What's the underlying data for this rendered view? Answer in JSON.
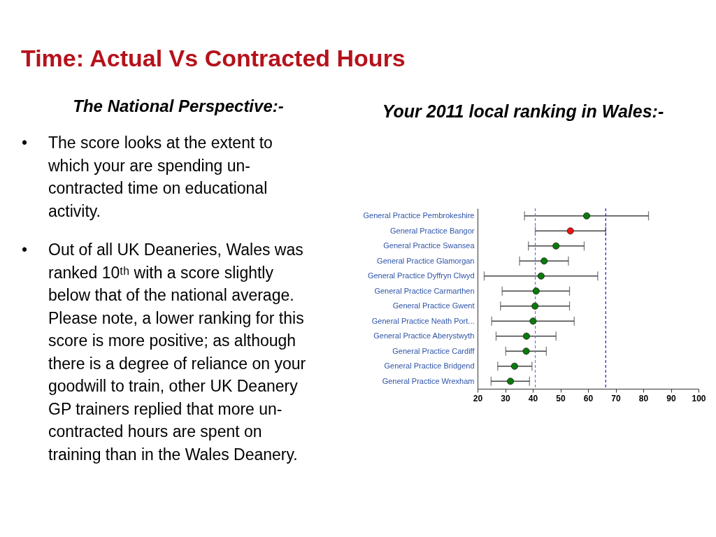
{
  "chart_data": {
    "type": "scatter",
    "orientation": "horizontal",
    "title": "Time: Actual Vs Contracted Hours",
    "subtitle": "Your 2011 local ranking in Wales:-",
    "annotations": [
      "The National Perspective:-",
      "• The score looks at the extent to which your are spending un-contracted time on educational activity.",
      "• Out of all UK Deaneries, Wales was ranked 10ᵗʰ with a score slightly below that of the national average. Please note, a lower ranking for this score is more positive; as although there is a degree of reliance on your goodwill to train, other UK Deanery GP trainers replied that more un-contracted hours are spent on training than in the Wales Deanery."
    ],
    "categories": [
      "General Practice Pembrokeshire",
      "General Practice Bangor",
      "General Practice Swansea",
      "General Practice Glamorgan",
      "General Practice Dyffryn Clwyd",
      "General Practice Carmarthen",
      "General Practice Gwent",
      "General Practice Neath Port...",
      "General Practice Aberystwyth",
      "General Practice Cardiff",
      "General Practice Bridgend",
      "General Practice Wrexham"
    ],
    "values": [
      59.5,
      53.6,
      48.4,
      44.1,
      43.0,
      41.2,
      40.8,
      40.1,
      37.7,
      37.6,
      33.4,
      31.9
    ],
    "colors": [
      "#0a7a0a",
      "#ee1111",
      "#0a7a0a",
      "#0a7a0a",
      "#0a7a0a",
      "#0a7a0a",
      "#0a7a0a",
      "#0a7a0a",
      "#0a7a0a",
      "#0a7a0a",
      "#0a7a0a",
      "#0a7a0a"
    ],
    "errors": [
      [
        37.0,
        81.9
      ],
      [
        40.9,
        66.4
      ],
      [
        38.4,
        58.6
      ],
      [
        35.2,
        52.9
      ],
      [
        22.4,
        63.5
      ],
      [
        28.9,
        53.3
      ],
      [
        28.3,
        53.3
      ],
      [
        25.1,
        55.0
      ],
      [
        26.7,
        48.4
      ],
      [
        30.2,
        44.9
      ],
      [
        27.3,
        39.7
      ],
      [
        24.9,
        38.8
      ]
    ],
    "xlim": [
      20,
      100
    ],
    "xticks": [
      20,
      30,
      40,
      50,
      60,
      70,
      80,
      90,
      100
    ],
    "marker": "circle",
    "ref_lines": [
      {
        "axis": "x",
        "value": 40.9,
        "color": "#7070e0",
        "line_style": "dashed"
      },
      {
        "axis": "x",
        "value": 66.4,
        "color": "#1c1cc0",
        "line_style": "dashed"
      }
    ]
  }
}
